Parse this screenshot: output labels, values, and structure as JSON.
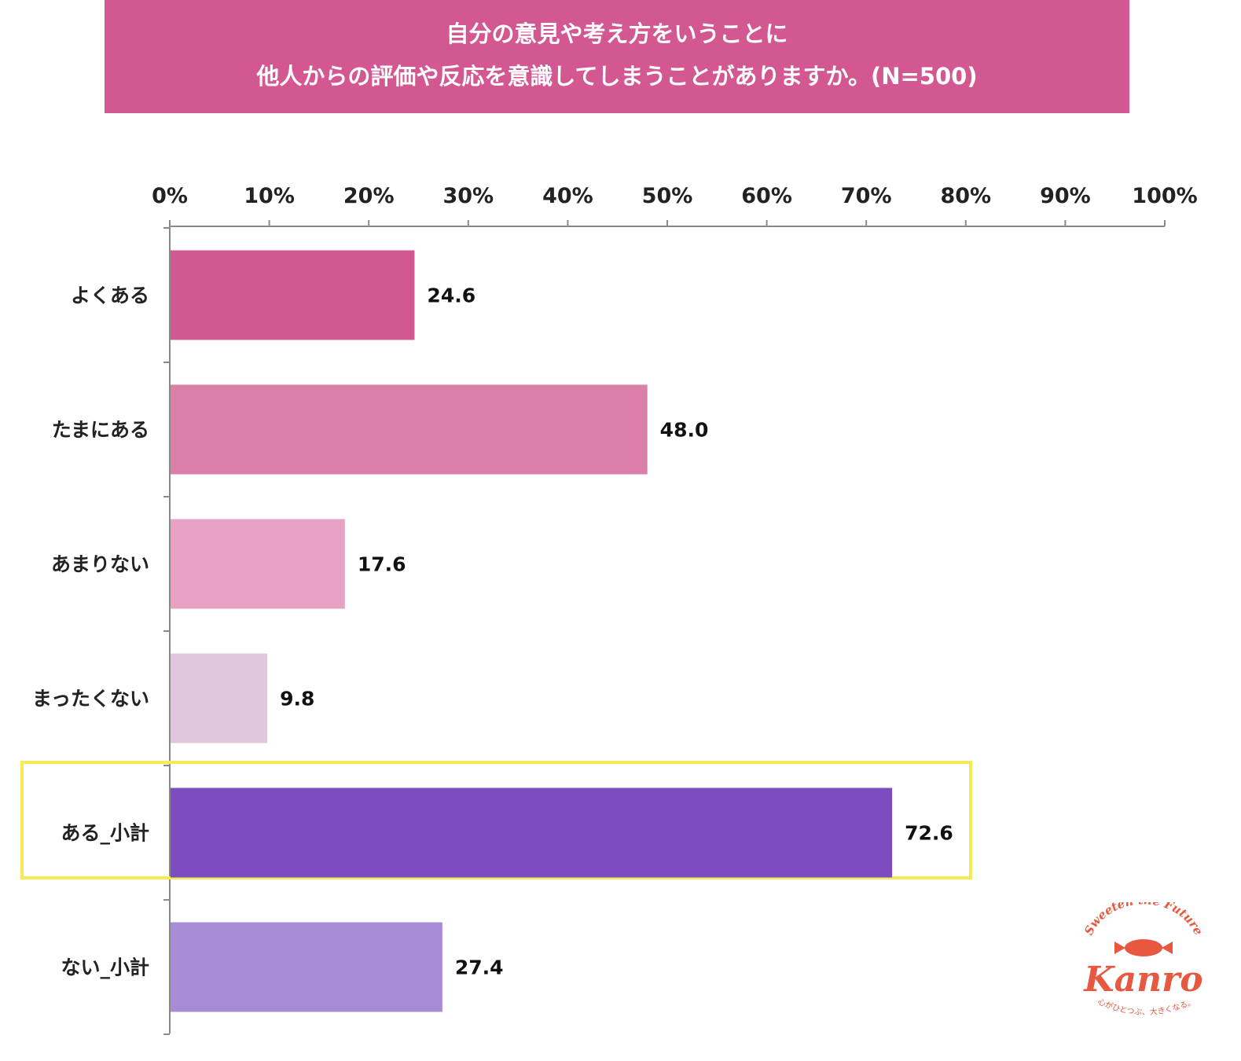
{
  "title": {
    "line1": "自分の意見や考え方をいうことに",
    "line2": "他人からの評価や反応を意識してしまうことがありますか。(N=500)"
  },
  "chart_data": {
    "type": "bar",
    "orientation": "horizontal",
    "xlim": [
      0,
      100
    ],
    "ticks": [
      0,
      10,
      20,
      30,
      40,
      50,
      60,
      70,
      80,
      90,
      100
    ],
    "tick_suffix": "%",
    "categories": [
      "よくある",
      "たまにある",
      "あまりない",
      "まったくない",
      "ある_小計",
      "ない_小計"
    ],
    "values": [
      24.6,
      48.0,
      17.6,
      9.8,
      72.6,
      27.4
    ],
    "value_labels": [
      "24.6",
      "48.0",
      "17.6",
      "9.8",
      "72.6",
      "27.4"
    ],
    "colors": [
      "#d35891",
      "#d97fa8",
      "#e8a3c4",
      "#e4c6dc",
      "#7d4dc0",
      "#a78bd5"
    ],
    "highlight_category": "ある_小計",
    "highlight_color": "#f8ea55",
    "axis_color": "#8a8a8a"
  },
  "logo": {
    "tagline": "Sweeten the Future",
    "wordmark": "Kanro",
    "subline": "心がひとつぶ、大きくなる。",
    "color": "#e8573f"
  }
}
